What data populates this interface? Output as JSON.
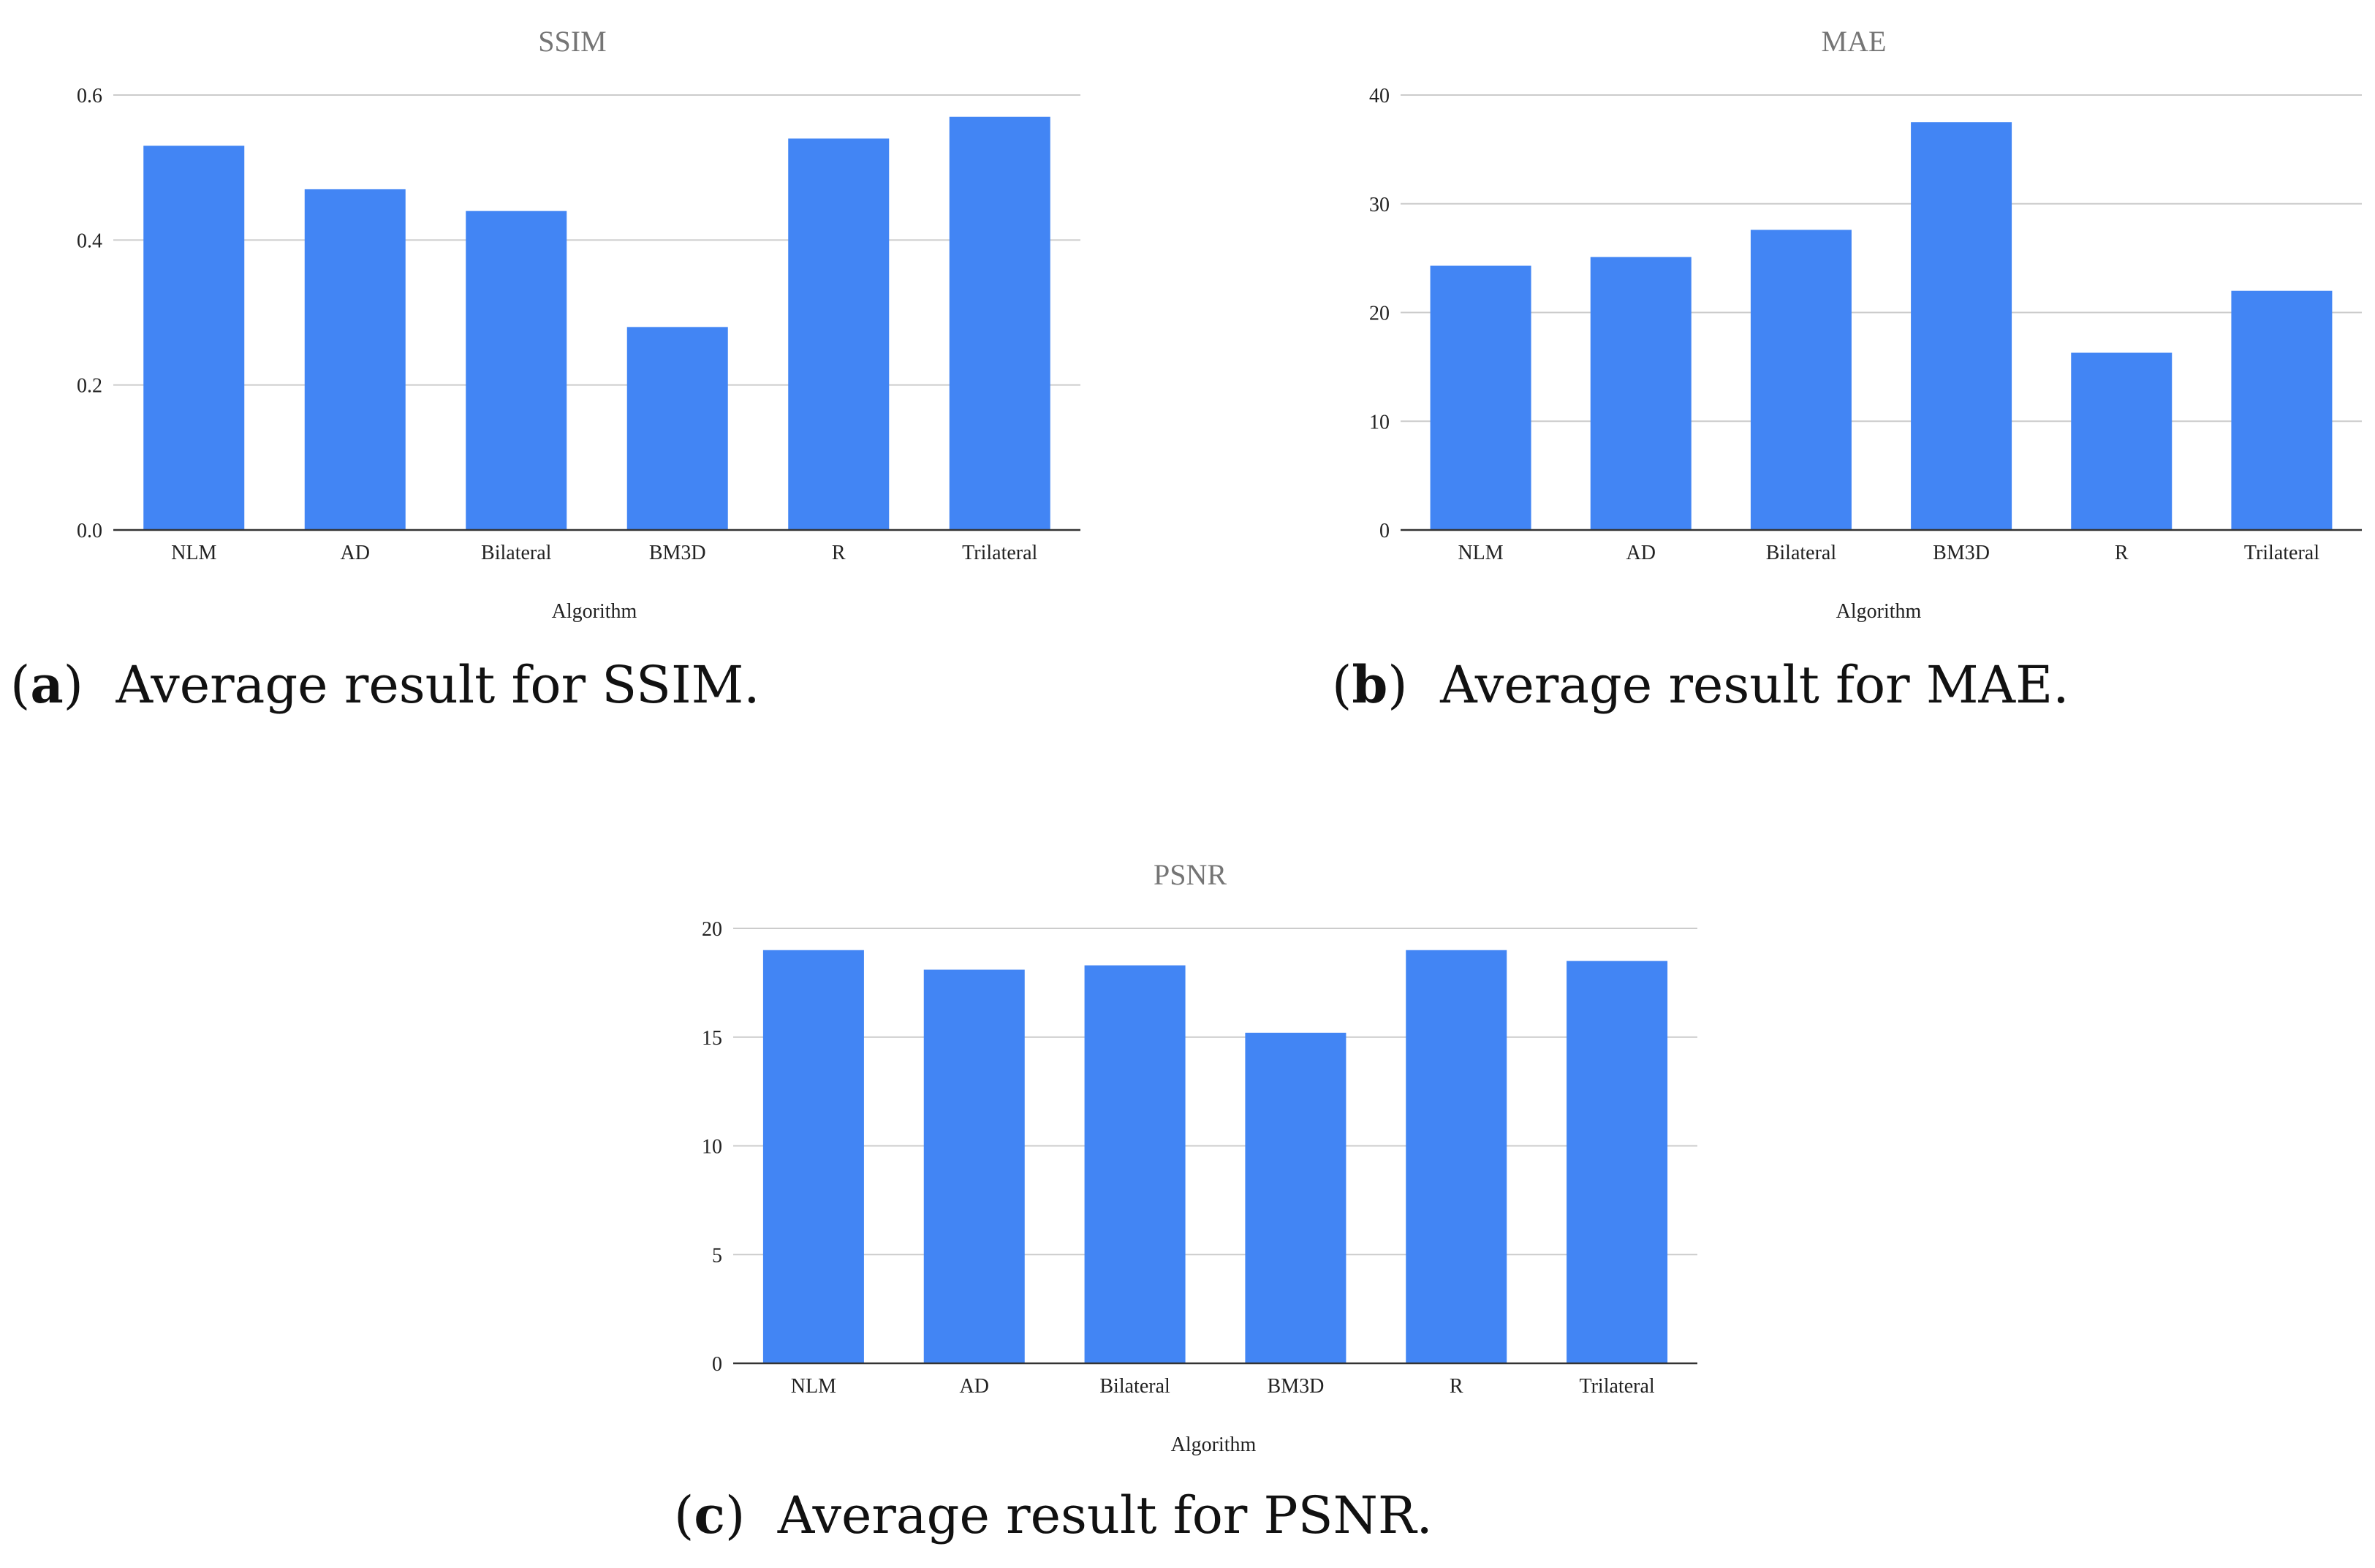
{
  "colors": {
    "bar": "#4285F4",
    "grid": "#cccccc",
    "axis": "#333333",
    "title": "#757575"
  },
  "chart_data": [
    {
      "id": "a",
      "type": "bar",
      "title": "SSIM",
      "xlabel": "Algorithm",
      "ylabel": "",
      "categories": [
        "NLM",
        "AD",
        "Bilateral",
        "BM3D",
        "R",
        "Trilateral"
      ],
      "values": [
        0.53,
        0.47,
        0.44,
        0.28,
        0.54,
        0.57
      ],
      "ylim": [
        0,
        0.6
      ],
      "yticks": [
        0.0,
        0.2,
        0.4,
        0.6
      ],
      "ytick_labels": [
        "0.0",
        "0.2",
        "0.4",
        "0.6"
      ],
      "grid": true,
      "legend": "none"
    },
    {
      "id": "b",
      "type": "bar",
      "title": "MAE",
      "xlabel": "Algorithm",
      "ylabel": "",
      "categories": [
        "NLM",
        "AD",
        "Bilateral",
        "BM3D",
        "R",
        "Trilateral"
      ],
      "values": [
        24.3,
        25.1,
        27.6,
        37.5,
        16.3,
        22.0
      ],
      "ylim": [
        0,
        40
      ],
      "yticks": [
        0,
        10,
        20,
        30,
        40
      ],
      "ytick_labels": [
        "0",
        "10",
        "20",
        "30",
        "40"
      ],
      "grid": true,
      "legend": "none"
    },
    {
      "id": "c",
      "type": "bar",
      "title": "PSNR",
      "xlabel": "Algorithm",
      "ylabel": "",
      "categories": [
        "NLM",
        "AD",
        "Bilateral",
        "BM3D",
        "R",
        "Trilateral"
      ],
      "values": [
        19.0,
        18.1,
        18.3,
        15.2,
        19.0,
        18.5
      ],
      "ylim": [
        0,
        20
      ],
      "yticks": [
        0,
        5,
        10,
        15,
        20
      ],
      "ytick_labels": [
        "0",
        "5",
        "10",
        "15",
        "20"
      ],
      "grid": true,
      "legend": "none"
    }
  ],
  "captions": {
    "a": {
      "letter": "a",
      "text": "Average result for SSIM."
    },
    "b": {
      "letter": "b",
      "text": "Average result for MAE."
    },
    "c": {
      "letter": "c",
      "text": "Average result for PSNR."
    }
  }
}
